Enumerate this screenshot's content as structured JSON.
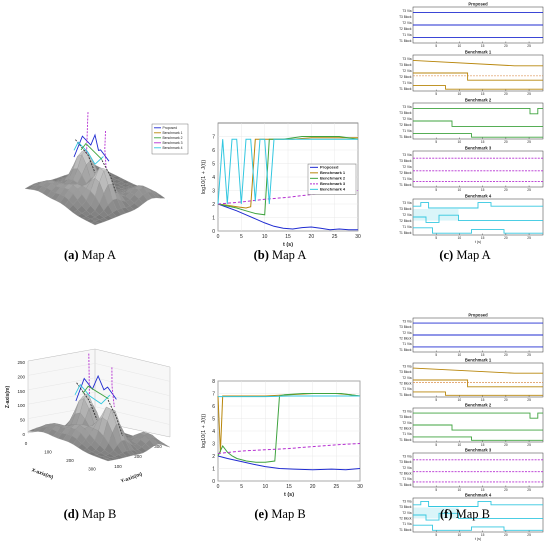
{
  "captions": [
    {
      "letter": "(a)",
      "text": "Map A"
    },
    {
      "letter": "(b)",
      "text": "Map A"
    },
    {
      "letter": "(c)",
      "text": "Map A"
    },
    {
      "letter": "(d)",
      "text": "Map B"
    },
    {
      "letter": "(e)",
      "text": "Map B"
    },
    {
      "letter": "(f)",
      "text": "Map B"
    }
  ],
  "colors": {
    "proposed": "#1f2bd1",
    "benchmark1": "#b8860b",
    "benchmark2": "#3fa33f",
    "benchmark3": "#b52ed1",
    "benchmark4": "#33c7e0",
    "surface": "#a9a9a9"
  },
  "map3d_a": {
    "legend": [
      "Proposed",
      "Benchmark 1",
      "Benchmark 2",
      "Benchmark 3",
      "Benchmark 4"
    ]
  },
  "map3d_b": {
    "zlabel": "Z-axis(m)",
    "xlabel": "X-axis(m)",
    "ylabel": "Y-axis(m)",
    "zticks": [
      "250",
      "200",
      "150",
      "100",
      "50",
      "0"
    ],
    "xticks": [
      "0",
      "100",
      "200",
      "300"
    ],
    "yticks": [
      "100",
      "200",
      "300"
    ]
  },
  "timeline_labels": [
    "T3 Via",
    "T3 Block",
    "T2 Via",
    "T2 Block",
    "T1 Via",
    "T1 Block"
  ],
  "timeline_xticks": [
    "5",
    "10",
    "15",
    "20",
    "25"
  ],
  "timeline_xlabel": "t (s)",
  "timeline_titles": [
    "Proposed",
    "Benchmark 1",
    "Benchmark 2",
    "Benchmark 3",
    "Benchmark 4"
  ],
  "chart_data": [
    {
      "type": "line",
      "title": "",
      "xlabel": "t (s)",
      "ylabel": "log10(1 + J(t))",
      "xlim": [
        0,
        30
      ],
      "ylim": [
        0,
        8
      ],
      "xticks": [
        0,
        5,
        10,
        15,
        20,
        25,
        30
      ],
      "yticks": [
        0,
        1,
        2,
        3,
        4,
        5,
        6,
        7
      ],
      "legend_position": "top-right",
      "series": [
        {
          "name": "Proposed",
          "color": "#1f2bd1",
          "dash": "solid",
          "x": [
            0,
            2,
            4,
            6,
            8,
            10,
            12,
            14,
            16,
            18,
            20,
            22,
            24,
            26,
            28,
            30
          ],
          "y": [
            2.0,
            1.75,
            1.5,
            1.2,
            0.9,
            0.6,
            0.35,
            0.2,
            0.15,
            0.25,
            0.3,
            0.2,
            0.1,
            0.15,
            0.1,
            0.1
          ]
        },
        {
          "name": "Benchmark 1",
          "color": "#b8860b",
          "dash": "solid",
          "x": [
            0,
            2,
            4,
            6,
            7,
            8,
            10,
            12,
            14,
            16,
            20,
            24,
            28,
            30
          ],
          "y": [
            2.0,
            1.9,
            1.8,
            1.7,
            1.8,
            6.8,
            6.8,
            6.8,
            6.8,
            6.8,
            6.9,
            6.9,
            6.9,
            6.9
          ]
        },
        {
          "name": "Benchmark 2",
          "color": "#3fa33f",
          "dash": "solid",
          "x": [
            0,
            2,
            4,
            6,
            8,
            10,
            11,
            12,
            14,
            18,
            22,
            26,
            30
          ],
          "y": [
            2.0,
            1.85,
            1.7,
            1.5,
            1.3,
            1.2,
            6.8,
            6.8,
            6.8,
            7.0,
            7.0,
            7.0,
            6.8
          ]
        },
        {
          "name": "Benchmark 3",
          "color": "#b52ed1",
          "dash": "dashed",
          "x": [
            0,
            5,
            10,
            15,
            20,
            25,
            30
          ],
          "y": [
            2.0,
            2.15,
            2.35,
            2.5,
            2.7,
            2.85,
            3.0
          ]
        },
        {
          "name": "Benchmark 4",
          "color": "#33c7e0",
          "dash": "solid",
          "x": [
            0,
            1,
            2,
            3,
            4,
            5,
            6,
            7,
            8,
            9,
            10,
            11,
            12,
            13,
            14,
            16,
            18,
            20,
            25,
            30
          ],
          "y": [
            2.0,
            6.8,
            2.0,
            6.8,
            6.8,
            2.0,
            6.8,
            6.8,
            2.2,
            6.8,
            6.8,
            2.0,
            6.8,
            6.8,
            6.8,
            6.8,
            6.8,
            6.8,
            6.8,
            6.8
          ]
        }
      ]
    },
    {
      "type": "line",
      "title": "",
      "xlabel": "t (s)",
      "ylabel": "log10(1 + J(t))",
      "xlim": [
        0,
        30
      ],
      "ylim": [
        0,
        8
      ],
      "xticks": [
        0,
        5,
        10,
        15,
        20,
        25,
        30
      ],
      "yticks": [
        0,
        1,
        2,
        3,
        4,
        5,
        6,
        7,
        8
      ],
      "series": [
        {
          "name": "Proposed",
          "color": "#1f2bd1",
          "dash": "solid",
          "x": [
            0,
            2,
            5,
            8,
            10,
            13,
            16,
            20,
            24,
            27,
            30
          ],
          "y": [
            2.0,
            1.8,
            1.55,
            1.3,
            1.15,
            1.0,
            0.95,
            0.9,
            0.95,
            0.9,
            1.0
          ]
        },
        {
          "name": "Benchmark 1",
          "color": "#b8860b",
          "dash": "solid",
          "x": [
            0,
            0.5,
            1,
            5,
            10,
            15,
            20,
            25,
            28,
            30
          ],
          "y": [
            6.8,
            2.3,
            6.8,
            6.8,
            6.8,
            6.9,
            7.0,
            7.0,
            6.9,
            6.8
          ]
        },
        {
          "name": "Benchmark 2",
          "color": "#3fa33f",
          "dash": "solid",
          "x": [
            0,
            1,
            2,
            3,
            4,
            6,
            8,
            10,
            12,
            13,
            14,
            18,
            22,
            26,
            30
          ],
          "y": [
            2.0,
            2.8,
            2.3,
            2.0,
            1.8,
            1.6,
            1.5,
            1.5,
            1.6,
            6.8,
            6.9,
            7.0,
            7.0,
            7.0,
            6.8
          ]
        },
        {
          "name": "Benchmark 3",
          "color": "#b52ed1",
          "dash": "dashed",
          "x": [
            0,
            5,
            10,
            15,
            20,
            25,
            30
          ],
          "y": [
            2.2,
            2.4,
            2.5,
            2.6,
            2.75,
            2.9,
            3.0
          ]
        },
        {
          "name": "Benchmark 4",
          "color": "#33c7e0",
          "dash": "solid",
          "x": [
            0,
            5,
            10,
            15,
            20,
            25,
            30
          ],
          "y": [
            6.75,
            6.75,
            6.75,
            6.8,
            6.8,
            6.8,
            6.8
          ]
        }
      ]
    }
  ]
}
